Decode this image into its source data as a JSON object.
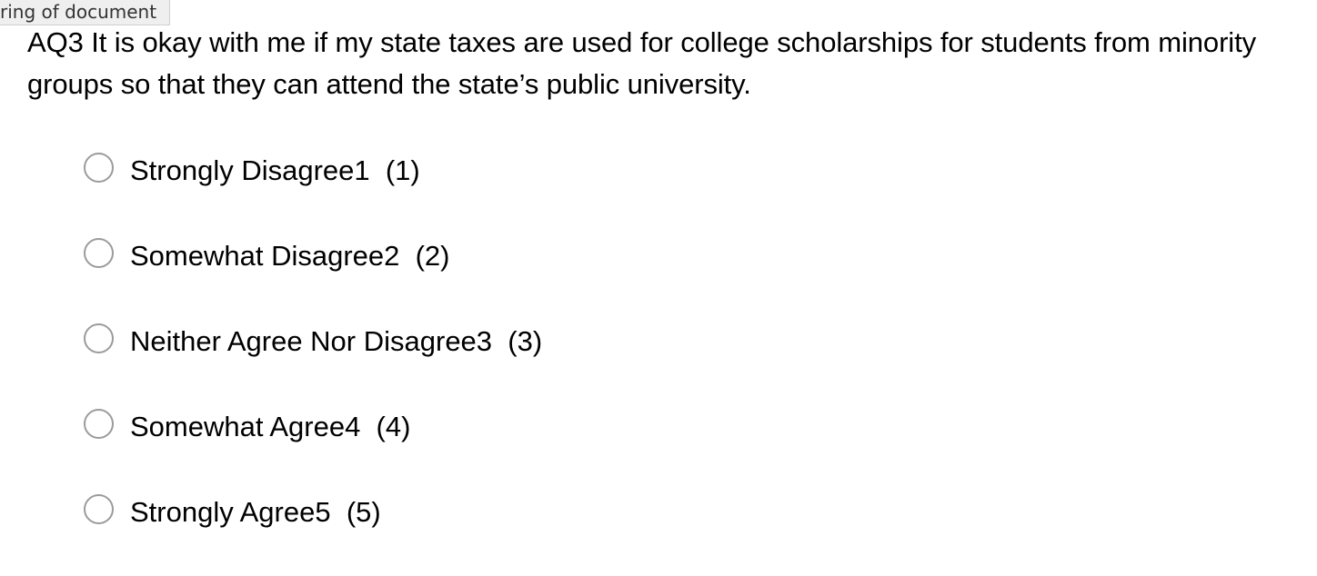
{
  "doc_tag": "ring of document",
  "question": {
    "text": "AQ3 It is okay with me if my state taxes are used for college scholarships for students from minority groups so that they can attend the state’s public university."
  },
  "options": [
    {
      "label": "Strongly Disagree1  (1)",
      "selected": false
    },
    {
      "label": "Somewhat Disagree2  (2)",
      "selected": false
    },
    {
      "label": "Neither Agree Nor Disagree3  (3)",
      "selected": false
    },
    {
      "label": "Somewhat Agree4  (4)",
      "selected": false
    },
    {
      "label": "Strongly Agree5  (5)",
      "selected": false
    }
  ]
}
